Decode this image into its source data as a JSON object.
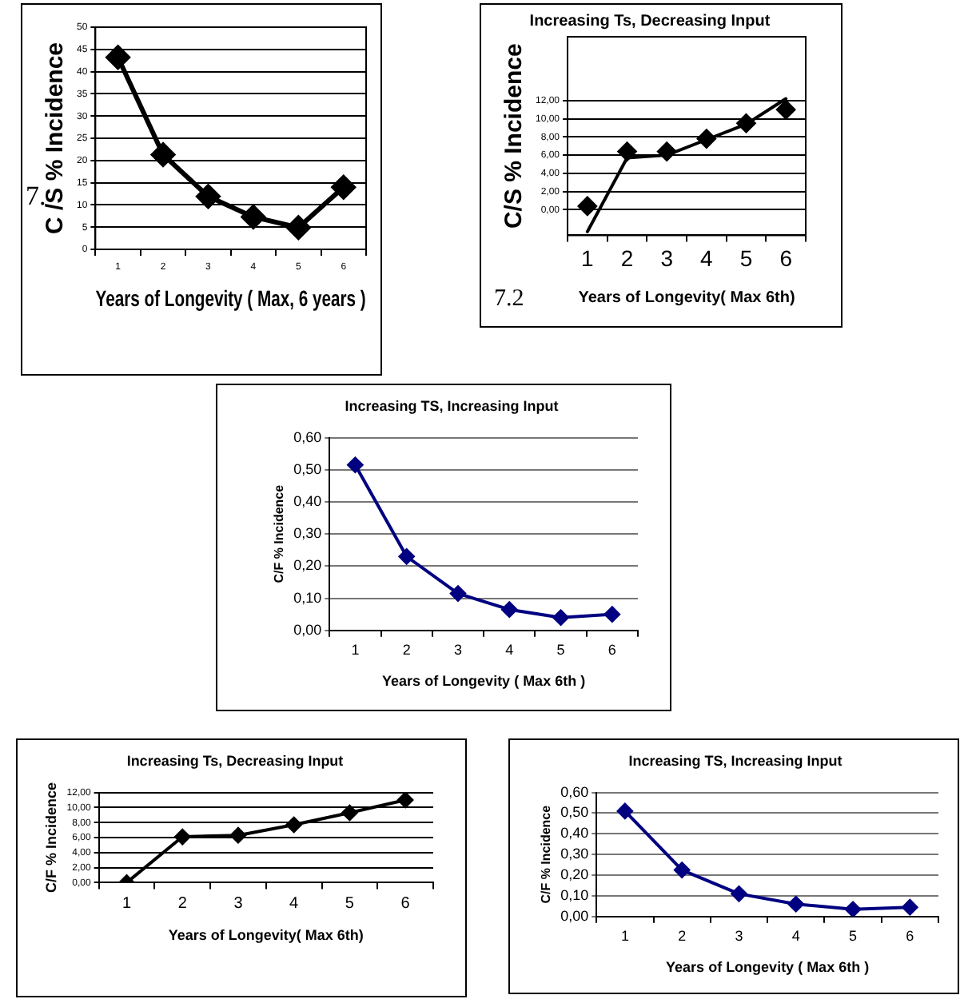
{
  "chart_data": [
    {
      "type": "line",
      "ylabel": "C /S % Incidence",
      "xlabel": "Years of Longevity ( Max, 6 years )",
      "annotations": [
        "7."
      ],
      "categories": [
        "1",
        "2",
        "3",
        "4",
        "5",
        "6"
      ],
      "series": [
        {
          "color": "#000000",
          "values": [
            43.2,
            21.3,
            11.9,
            7.3,
            4.9,
            14.0
          ]
        }
      ],
      "ylim": [
        0,
        50
      ],
      "yticks": [
        0,
        5,
        10,
        15,
        20,
        25,
        30,
        35,
        40,
        45,
        50
      ],
      "grid": "y",
      "marker": "diamond",
      "legend": false
    },
    {
      "type": "line",
      "title": "Increasing Ts, Decreasing Input",
      "ylabel": "C/S % Incidence",
      "xlabel": "Years of Longevity( Max 6th)",
      "annotations": [
        "7.2"
      ],
      "categories": [
        "1",
        "2",
        "3",
        "4",
        "5",
        "6"
      ],
      "series": [
        {
          "type": "line",
          "marker": "none",
          "color": "#000000",
          "values": [
            -2.4,
            5.7,
            6.0,
            7.7,
            9.4,
            12.2
          ]
        },
        {
          "type": "scatter",
          "marker": "diamond",
          "color": "#000000",
          "x": [
            "1",
            "2",
            "3",
            "4",
            "5",
            "6"
          ],
          "values": [
            0.4,
            6.4,
            6.4,
            7.8,
            9.5,
            11.0
          ]
        }
      ],
      "ylim": [
        -2.8,
        19
      ],
      "yticks": [
        {
          "value": 0,
          "label": "0,00"
        },
        {
          "value": 2,
          "label": "2,00"
        },
        {
          "value": 4,
          "label": "4,00"
        },
        {
          "value": 6,
          "label": "6,00"
        },
        {
          "value": 8,
          "label": "8,00"
        },
        {
          "value": 10,
          "label": "10,00"
        },
        {
          "value": 12,
          "label": "12,00"
        }
      ],
      "grid": "y",
      "legend": false
    },
    {
      "type": "line",
      "title": "Increasing TS, Increasing Input",
      "ylabel": "C/F % Incidence",
      "xlabel": "Years of Longevity ( Max 6th )",
      "categories": [
        "1",
        "2",
        "3",
        "4",
        "5",
        "6"
      ],
      "series": [
        {
          "color": "#000080",
          "values": [
            0.515,
            0.23,
            0.115,
            0.065,
            0.04,
            0.05
          ]
        }
      ],
      "ylim": [
        0,
        0.6
      ],
      "yticks": [
        {
          "value": 0,
          "label": "0,00"
        },
        {
          "value": 0.1,
          "label": "0,10"
        },
        {
          "value": 0.2,
          "label": "0,20"
        },
        {
          "value": 0.3,
          "label": "0,30"
        },
        {
          "value": 0.4,
          "label": "0,40"
        },
        {
          "value": 0.5,
          "label": "0,50"
        },
        {
          "value": 0.6,
          "label": "0,60"
        }
      ],
      "grid": "y",
      "marker": "diamond",
      "legend": false
    },
    {
      "type": "line",
      "title": "Increasing Ts, Decreasing Input",
      "ylabel": "C/F % Incidence",
      "xlabel": "Years of Longevity( Max 6th)",
      "categories": [
        "1",
        "2",
        "3",
        "4",
        "5",
        "6"
      ],
      "series": [
        {
          "color": "#000000",
          "values": [
            0,
            6.1,
            6.3,
            7.7,
            9.3,
            11.0
          ]
        }
      ],
      "ylim": [
        0,
        12
      ],
      "yticks": [
        {
          "value": 0,
          "label": "0,00"
        },
        {
          "value": 2,
          "label": "2,00"
        },
        {
          "value": 4,
          "label": "4,00"
        },
        {
          "value": 6,
          "label": "6,00"
        },
        {
          "value": 8,
          "label": "8,00"
        },
        {
          "value": 10,
          "label": "10,00"
        },
        {
          "value": 12,
          "label": "12,00"
        }
      ],
      "grid": "y",
      "marker": "diamond",
      "legend": false
    },
    {
      "type": "line",
      "title": "Increasing TS, Increasing Input",
      "ylabel": "C/F % Incidence",
      "xlabel": "Years of Longevity ( Max 6th )",
      "categories": [
        "1",
        "2",
        "3",
        "4",
        "5",
        "6"
      ],
      "series": [
        {
          "color": "#000080",
          "values": [
            0.51,
            0.225,
            0.11,
            0.06,
            0.035,
            0.045
          ]
        }
      ],
      "ylim": [
        0,
        0.6
      ],
      "yticks": [
        {
          "value": 0,
          "label": "0,00"
        },
        {
          "value": 0.1,
          "label": "0,10"
        },
        {
          "value": 0.2,
          "label": "0,20"
        },
        {
          "value": 0.3,
          "label": "0,30"
        },
        {
          "value": 0.4,
          "label": "0,40"
        },
        {
          "value": 0.5,
          "label": "0,50"
        },
        {
          "value": 0.6,
          "label": "0,60"
        }
      ],
      "grid": "y",
      "marker": "diamond",
      "legend": false
    }
  ]
}
